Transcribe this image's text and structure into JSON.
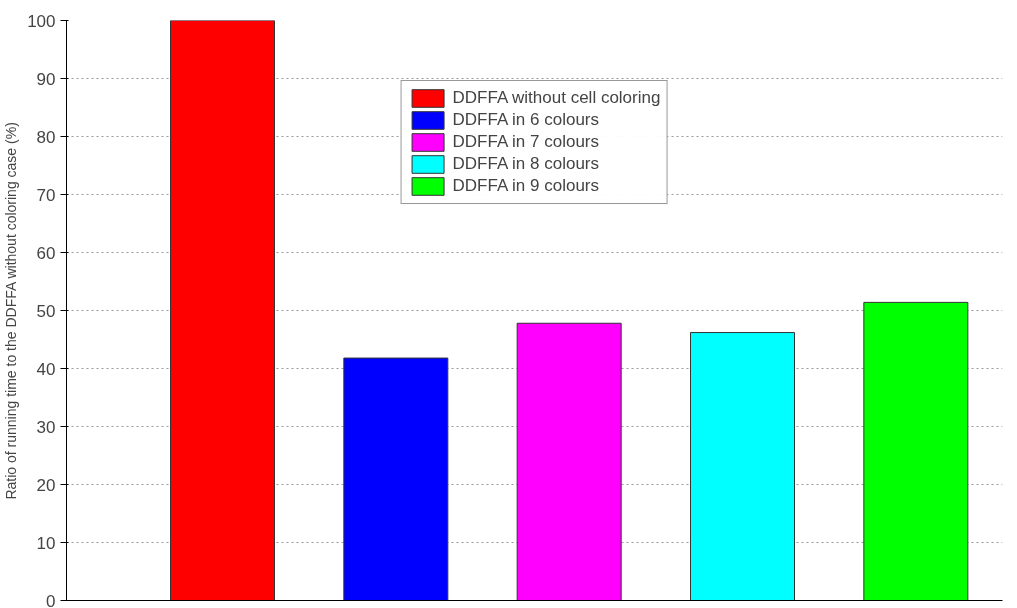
{
  "chart_data": {
    "type": "bar",
    "ylabel": "Ratio of running time to the DDFFA without coloring case (%)",
    "categories": [
      null,
      null,
      null,
      null,
      null
    ],
    "series": [
      {
        "name": "DDFFA without cell coloring",
        "color": "#ff0000",
        "values": [
          100,
          null,
          null,
          null,
          null
        ]
      },
      {
        "name": "DDFFA in 6 colours",
        "color": "#0000ff",
        "values": [
          null,
          41.8,
          null,
          null,
          null
        ]
      },
      {
        "name": "DDFFA in 7 colours",
        "color": "#ff00ff",
        "values": [
          null,
          null,
          47.8,
          null,
          null
        ]
      },
      {
        "name": "DDFFA in 8 colours",
        "color": "#00ffff",
        "values": [
          null,
          null,
          null,
          46.2,
          null
        ]
      },
      {
        "name": "DDFFA in 9 colours",
        "color": "#00ff00",
        "values": [
          null,
          null,
          null,
          null,
          51.4
        ]
      }
    ],
    "ylim": [
      0,
      100
    ],
    "yticks": [
      0,
      10,
      20,
      30,
      40,
      50,
      60,
      70,
      80,
      90,
      100
    ],
    "grid": "y",
    "legend": "top"
  }
}
